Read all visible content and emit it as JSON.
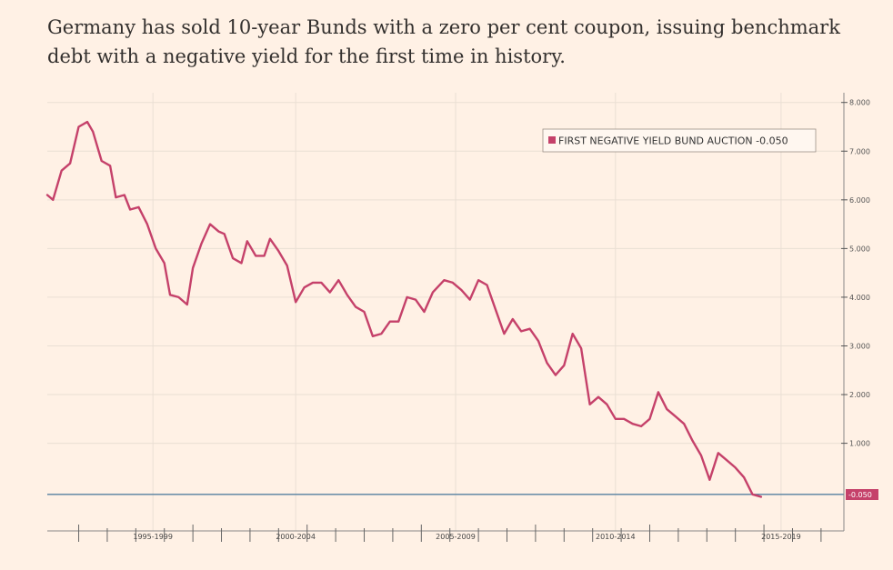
{
  "headline": "Germany has sold 10-year Bunds with a zero per cent coupon, issuing benchmark debt with a negative yield for the first time in history.",
  "chart_data": {
    "type": "line",
    "title": "",
    "xlabel": "",
    "ylabel": "",
    "x_range": [
      1991.9,
      2019.8
    ],
    "ylim": [
      -0.8,
      8.2
    ],
    "y_ticks": [
      8,
      7,
      6,
      5,
      4,
      3,
      2,
      1
    ],
    "y_tick_labels": [
      "8.000",
      "7.000",
      "6.000",
      "5.000",
      "4.000",
      "3.000",
      "2.000",
      "1.000"
    ],
    "x_tick_labels": [
      "1995-1999",
      "2000-2004",
      "2005-2009",
      "2010-2014",
      "2015-2019"
    ],
    "x_tick_positions": [
      1995.6,
      2000.6,
      2006.2,
      2011.8,
      2017.6
    ],
    "legend": "FIRST NEGATIVE YIELD BUND AUCTION -0.050",
    "legend_position": "top-right",
    "last_value_label": "-0.050",
    "reference_line_value": -0.05,
    "colors": {
      "series": "#c5416a",
      "reference": "#5580a0",
      "background": "#fff1e5",
      "grid": "#eadfd4"
    },
    "series": [
      {
        "name": "FIRST NEGATIVE YIELD BUND AUCTION",
        "points": [
          [
            1991.9,
            6.1
          ],
          [
            1992.1,
            6.0
          ],
          [
            1992.4,
            6.6
          ],
          [
            1992.7,
            6.75
          ],
          [
            1993.0,
            7.5
          ],
          [
            1993.3,
            7.6
          ],
          [
            1993.5,
            7.4
          ],
          [
            1993.8,
            6.8
          ],
          [
            1994.1,
            6.7
          ],
          [
            1994.3,
            6.05
          ],
          [
            1994.6,
            6.1
          ],
          [
            1994.8,
            5.8
          ],
          [
            1995.1,
            5.85
          ],
          [
            1995.4,
            5.5
          ],
          [
            1995.7,
            5.0
          ],
          [
            1996.0,
            4.7
          ],
          [
            1996.2,
            4.05
          ],
          [
            1996.5,
            4.0
          ],
          [
            1996.8,
            3.85
          ],
          [
            1997.0,
            4.6
          ],
          [
            1997.3,
            5.1
          ],
          [
            1997.6,
            5.5
          ],
          [
            1997.9,
            5.35
          ],
          [
            1998.1,
            5.3
          ],
          [
            1998.4,
            4.8
          ],
          [
            1998.7,
            4.7
          ],
          [
            1998.9,
            5.15
          ],
          [
            1999.2,
            4.85
          ],
          [
            1999.5,
            4.85
          ],
          [
            1999.7,
            5.2
          ],
          [
            2000.0,
            4.95
          ],
          [
            2000.3,
            4.65
          ],
          [
            2000.6,
            3.9
          ],
          [
            2000.9,
            4.2
          ],
          [
            2001.2,
            4.3
          ],
          [
            2001.5,
            4.3
          ],
          [
            2001.8,
            4.1
          ],
          [
            2002.1,
            4.35
          ],
          [
            2002.4,
            4.05
          ],
          [
            2002.7,
            3.8
          ],
          [
            2003.0,
            3.7
          ],
          [
            2003.3,
            3.2
          ],
          [
            2003.6,
            3.25
          ],
          [
            2003.9,
            3.5
          ],
          [
            2004.2,
            3.5
          ],
          [
            2004.5,
            4.0
          ],
          [
            2004.8,
            3.95
          ],
          [
            2005.1,
            3.7
          ],
          [
            2005.4,
            4.1
          ],
          [
            2005.8,
            4.35
          ],
          [
            2006.1,
            4.3
          ],
          [
            2006.4,
            4.15
          ],
          [
            2006.7,
            3.95
          ],
          [
            2007.0,
            4.35
          ],
          [
            2007.3,
            4.25
          ],
          [
            2007.6,
            3.75
          ],
          [
            2007.9,
            3.25
          ],
          [
            2008.2,
            3.55
          ],
          [
            2008.5,
            3.3
          ],
          [
            2008.8,
            3.35
          ],
          [
            2009.1,
            3.1
          ],
          [
            2009.4,
            2.65
          ],
          [
            2009.7,
            2.4
          ],
          [
            2010.0,
            2.6
          ],
          [
            2010.3,
            3.25
          ],
          [
            2010.6,
            2.95
          ],
          [
            2010.9,
            1.8
          ],
          [
            2011.2,
            1.95
          ],
          [
            2011.5,
            1.8
          ],
          [
            2011.8,
            1.5
          ],
          [
            2012.1,
            1.5
          ],
          [
            2012.4,
            1.4
          ],
          [
            2012.7,
            1.35
          ],
          [
            2013.0,
            1.5
          ],
          [
            2013.3,
            2.05
          ],
          [
            2013.6,
            1.7
          ],
          [
            2013.9,
            1.55
          ],
          [
            2014.2,
            1.4
          ],
          [
            2014.5,
            1.05
          ],
          [
            2014.8,
            0.75
          ],
          [
            2015.1,
            0.25
          ],
          [
            2015.4,
            0.8
          ],
          [
            2015.7,
            0.65
          ],
          [
            2016.0,
            0.5
          ],
          [
            2016.3,
            0.3
          ],
          [
            2016.6,
            -0.05
          ],
          [
            2016.9,
            -0.1
          ]
        ]
      }
    ]
  }
}
